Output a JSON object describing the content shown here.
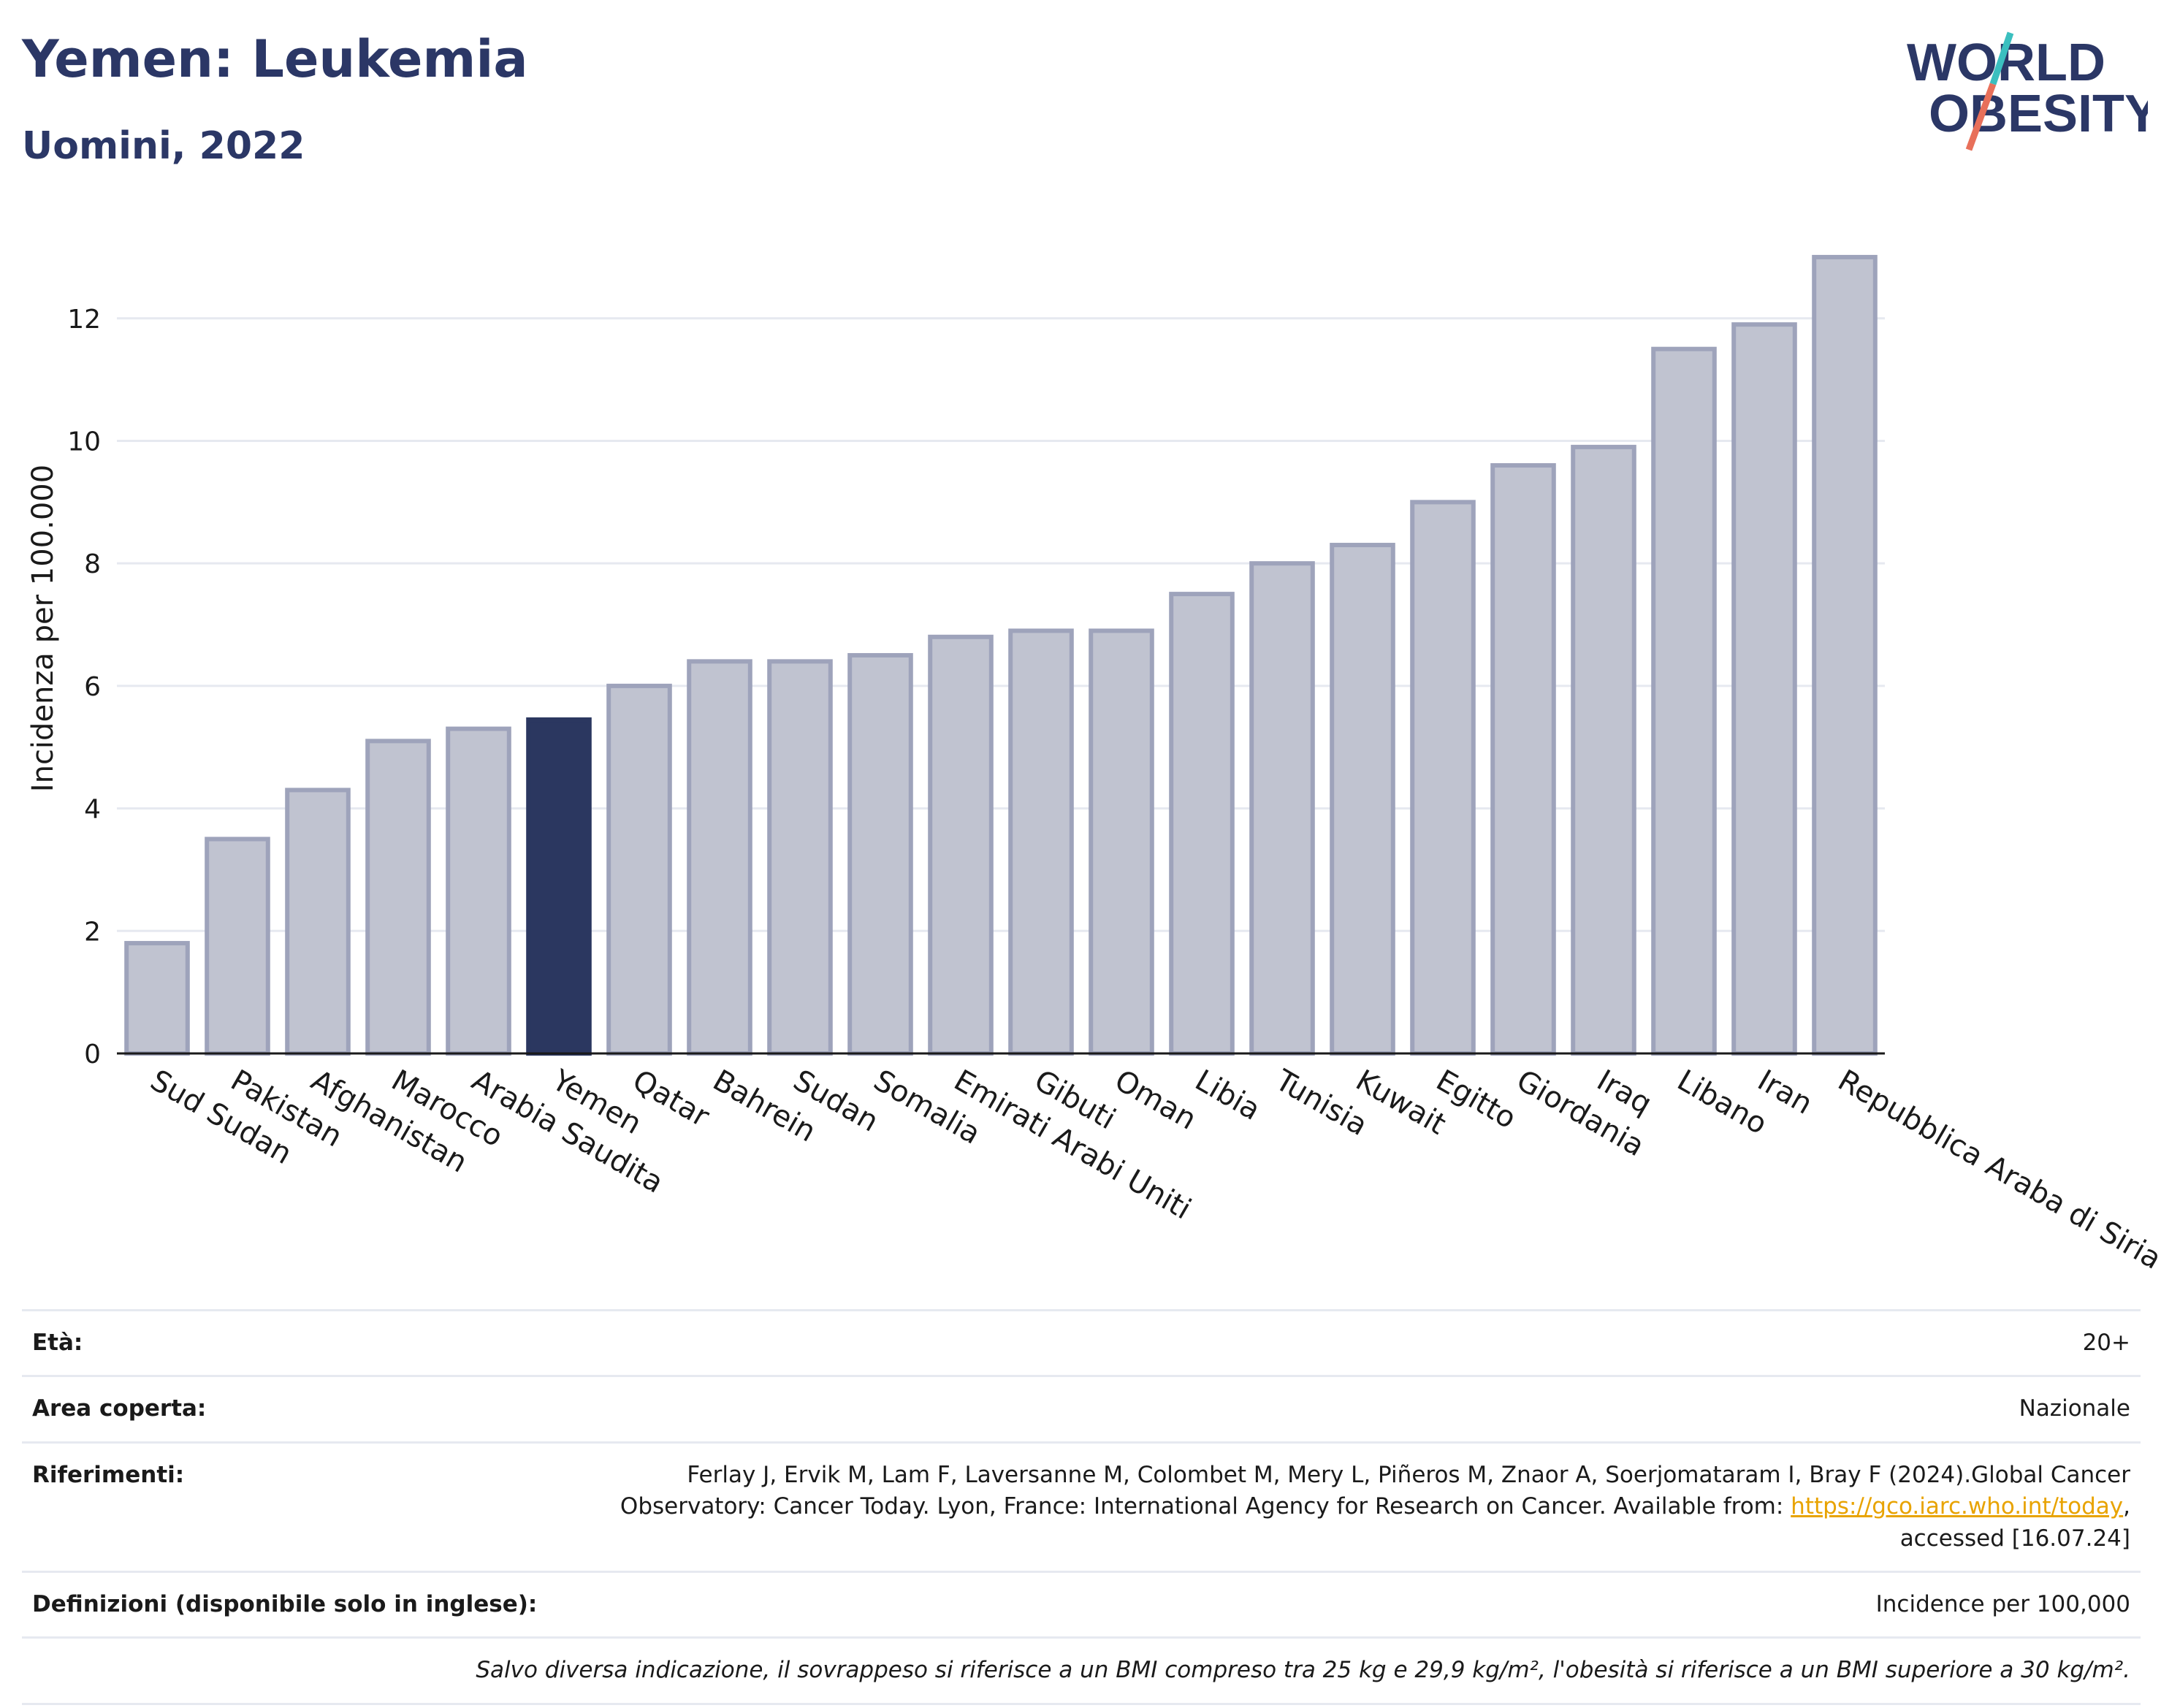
{
  "header": {
    "title": "Yemen: Leukemia",
    "subtitle": "Uomini, 2022"
  },
  "logo": {
    "line1": "WORLD",
    "line2": "OBESITY",
    "accent_colors": [
      "#3bbfbf",
      "#e8705a"
    ],
    "text_color": "#2b3766"
  },
  "chart_data": {
    "type": "bar",
    "ylabel": "Incidenza per 100.000",
    "xlabel": "",
    "ylim": [
      0,
      13.5
    ],
    "yticks": [
      0,
      2,
      4,
      6,
      8,
      10,
      12
    ],
    "grid": true,
    "highlight": "Yemen",
    "colors": {
      "bar": "#c0c3d0",
      "bar_edge": "#9ea3bb",
      "highlight": "#2b3760"
    },
    "categories": [
      "Sud Sudan",
      "Pakistan",
      "Afghanistan",
      "Marocco",
      "Arabia Saudita",
      "Yemen",
      "Qatar",
      "Bahrein",
      "Sudan",
      "Somalia",
      "Emirati Arabi Uniti",
      "Gibuti",
      "Oman",
      "Libia",
      "Tunisia",
      "Kuwait",
      "Egitto",
      "Giordania",
      "Iraq",
      "Libano",
      "Iran",
      "Repubblica Araba di Siria"
    ],
    "values": [
      1.8,
      3.5,
      4.3,
      5.1,
      5.3,
      5.45,
      6.0,
      6.4,
      6.4,
      6.5,
      6.8,
      6.9,
      6.9,
      7.5,
      8.0,
      8.3,
      9.0,
      9.6,
      9.9,
      11.5,
      11.9,
      13.0
    ]
  },
  "info": {
    "age_label": "Età:",
    "age_value": "20+",
    "area_label": "Area coperta:",
    "area_value": "Nazionale",
    "refs_label": "Riferimenti:",
    "refs_text_1": "Ferlay J, Ervik M, Lam F, Laversanne M, Colombet M, Mery L, Piñeros M, Znaor A, Soerjomataram I, Bray F (2024).Global Cancer",
    "refs_text_2": "Observatory: Cancer Today. Lyon, France: International Agency for Research on Cancer. Available from: ",
    "refs_link": "https://gco.iarc.who.int/today",
    "refs_text_3": ",",
    "refs_text_4": "accessed [16.07.24]",
    "def_label": "Definizioni (disponibile solo in inglese):",
    "def_value": "Incidence per 100,000",
    "note": "Salvo diversa indicazione, il sovrappeso si riferisce a un BMI compreso tra 25 kg e 29,9 kg/m², l'obesità si riferisce a un BMI superiore a 30 kg/m²."
  }
}
